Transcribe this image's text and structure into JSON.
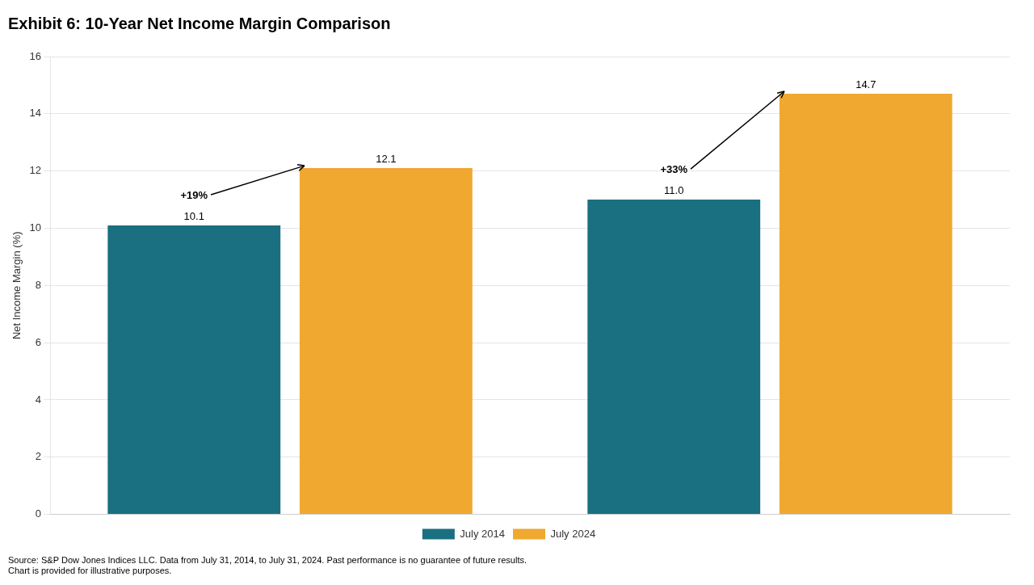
{
  "chart_data": {
    "type": "bar",
    "title": "Exhibit 6: 10-Year Net Income Margin Comparison",
    "ylabel": "Net Income Margin (%)",
    "source": "Source: S&P Dow Jones Indices LLC. Data from July 31, 2014, to July 31, 2024. Past performance is no guarantee of future results.\nChart is provided for illustrative purposes.",
    "categories": [
      null,
      null
    ],
    "series": [
      {
        "name": "July 2014",
        "color": "#1a7080",
        "values": [
          10.1,
          11.0
        ],
        "value_labels": [
          "10.1",
          "11.0"
        ]
      },
      {
        "name": "July 2024",
        "color": "#f0a830",
        "values": [
          12.1,
          14.7
        ],
        "value_labels": [
          "12.1",
          "14.7"
        ]
      }
    ],
    "annotations": [
      "+19%",
      "+33%"
    ],
    "ylim": [
      0,
      16.0
    ],
    "yticks": [
      0,
      2,
      4,
      6,
      8,
      10,
      12,
      14,
      16
    ],
    "grid": true,
    "legend": "bottom",
    "data_labels": true,
    "tick_labels": "y"
  }
}
